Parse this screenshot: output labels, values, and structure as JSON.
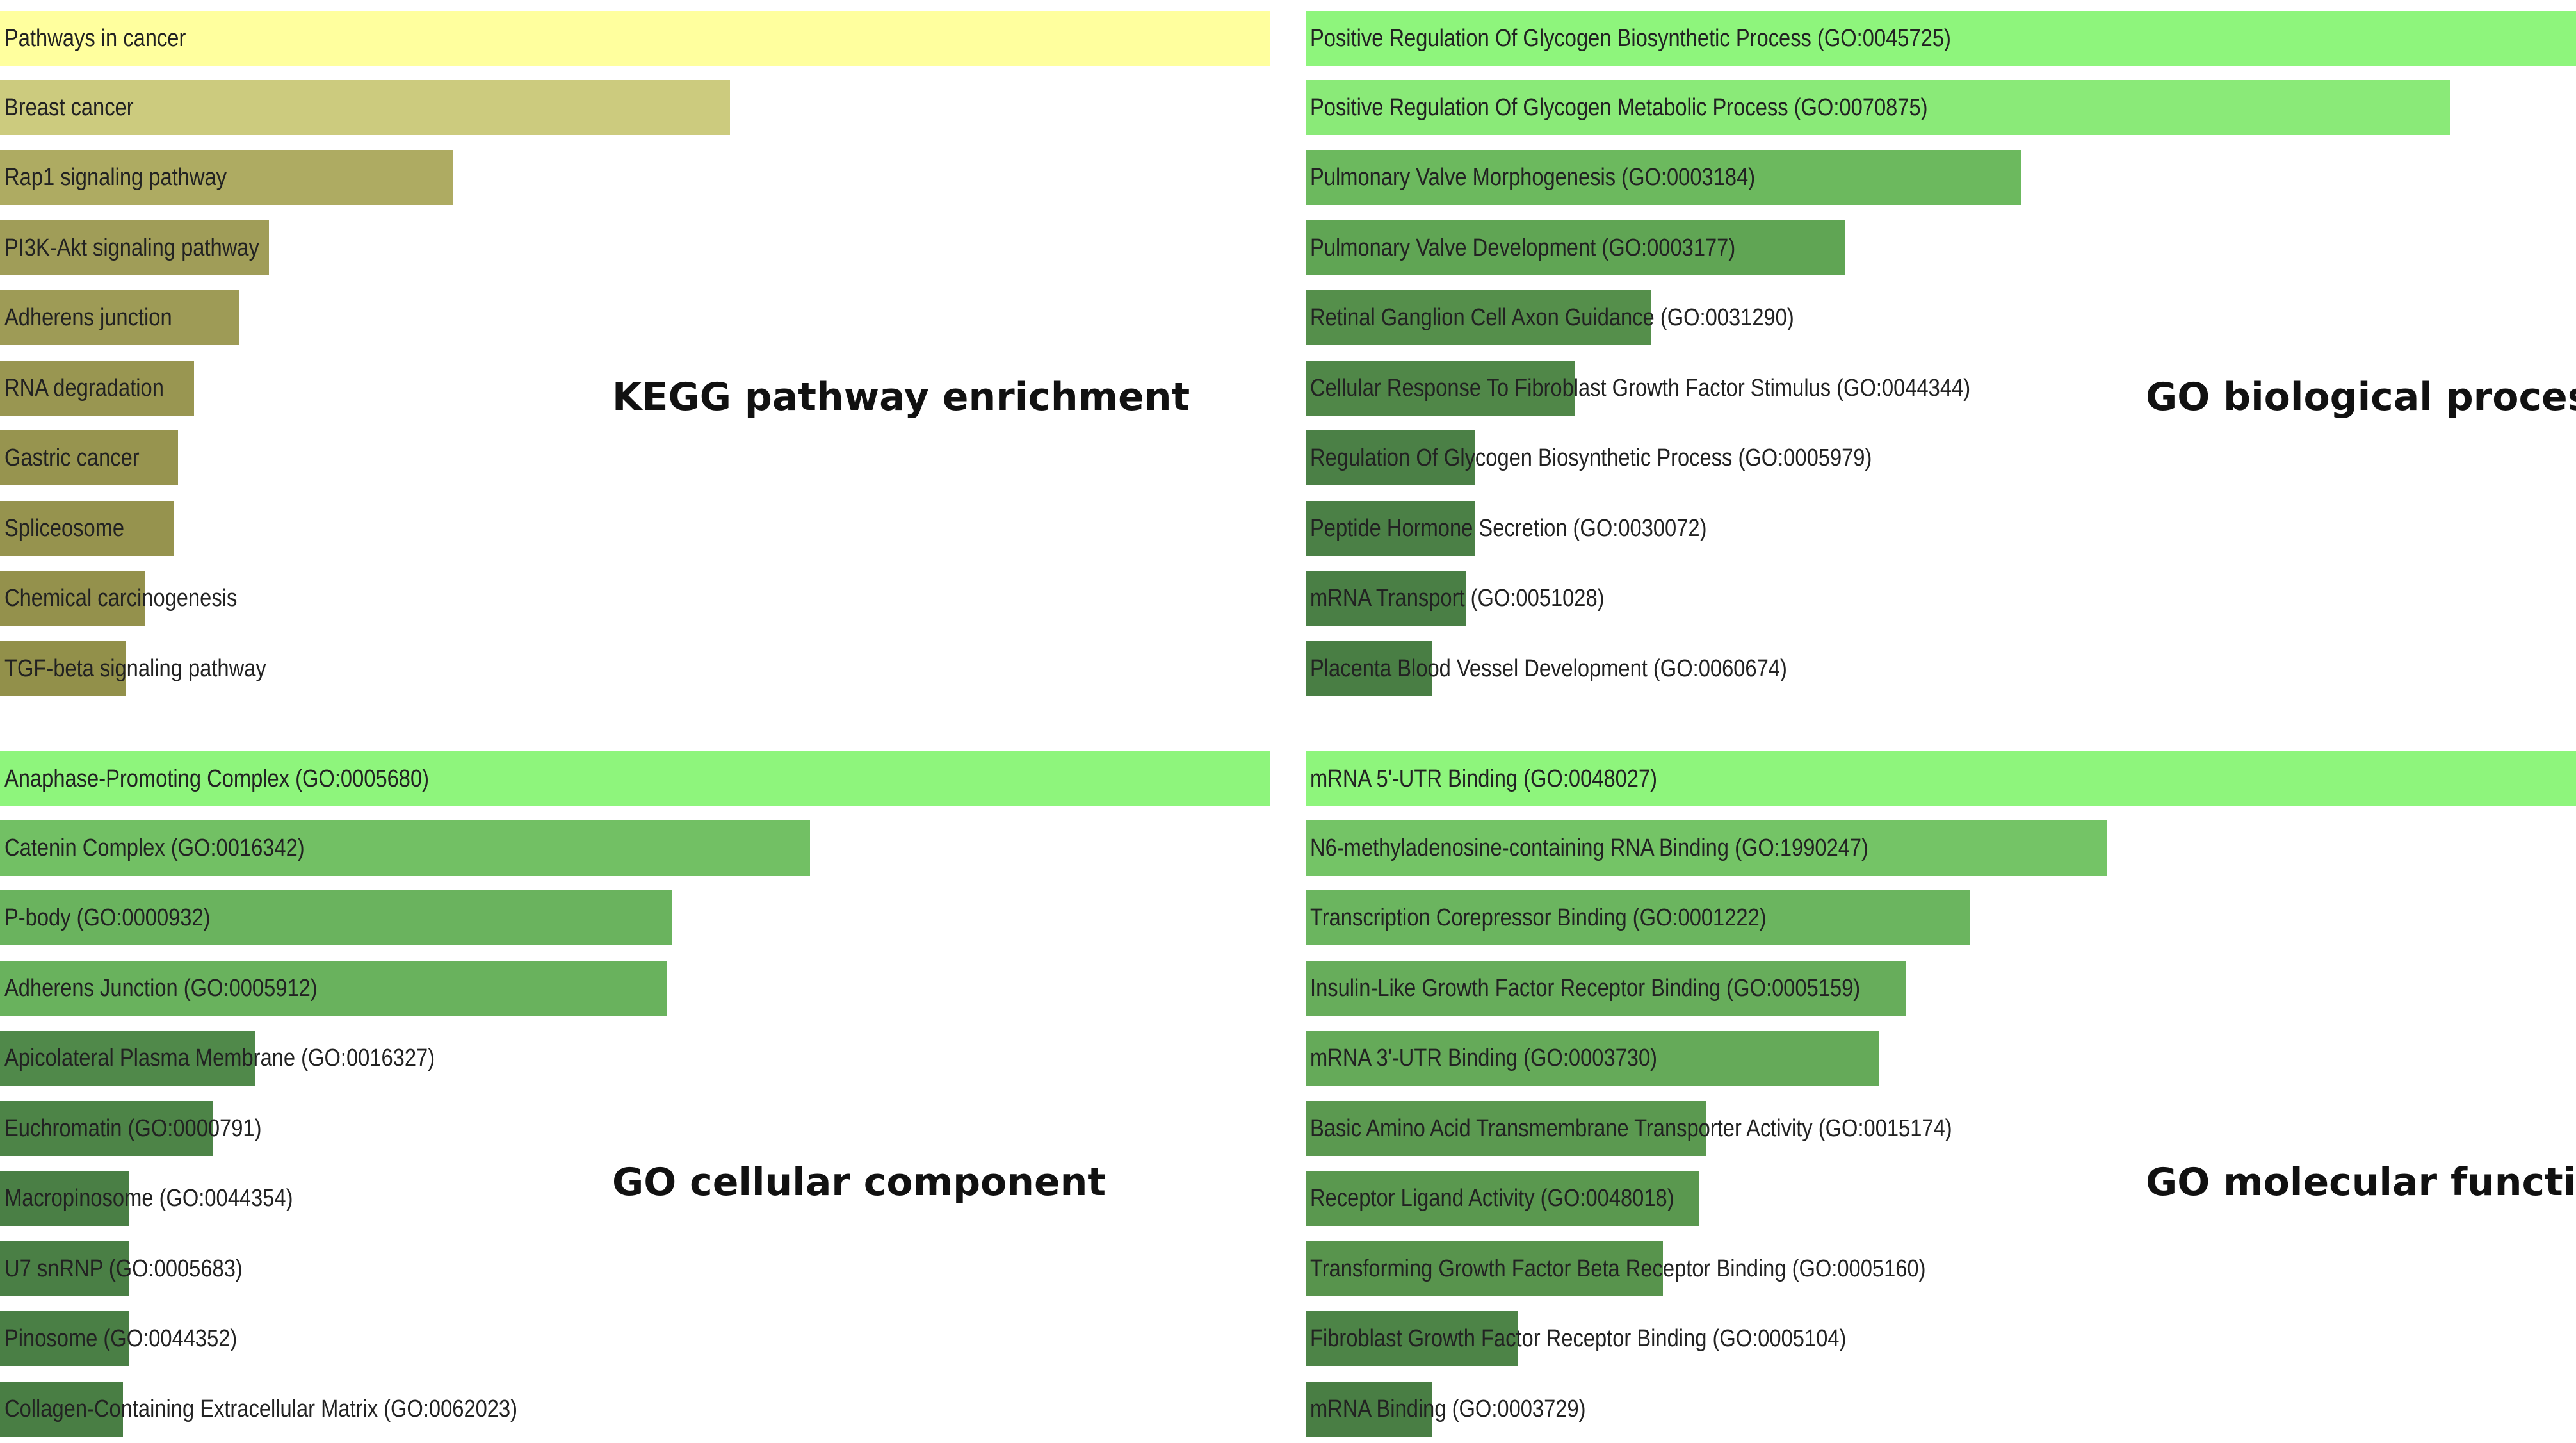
{
  "chart_data": [
    {
      "type": "bar",
      "orientation": "horizontal",
      "title": "KEGG pathway enrichment",
      "categories": [
        "Pathways in cancer",
        "Breast cancer",
        "Rap1 signaling pathway",
        "PI3K-Akt signaling pathway",
        "Adherens junction",
        "RNA degradation",
        "Gastric cancer",
        "Spliceosome",
        "Chemical carcinogenesis",
        "TGF-beta signaling pathway"
      ],
      "values": [
        1.0,
        0.575,
        0.357,
        0.212,
        0.188,
        0.153,
        0.14,
        0.137,
        0.114,
        0.099
      ],
      "colors": [
        "#ffff9e",
        "#cccb7e",
        "#aeab62",
        "#a09d58",
        "#9e9b56",
        "#999651",
        "#97944f",
        "#96934e",
        "#94914c",
        "#92904a"
      ],
      "xlabel": "",
      "ylabel": ""
    },
    {
      "type": "bar",
      "orientation": "horizontal",
      "title": "GO biological process",
      "categories": [
        "Positive Regulation Of Glycogen Biosynthetic Process (GO:0045725)",
        "Positive Regulation Of Glycogen Metabolic Process (GO:0070875)",
        "Pulmonary Valve Morphogenesis (GO:0003184)",
        "Pulmonary Valve Development (GO:0003177)",
        "Retinal Ganglion Cell Axon Guidance (GO:0031290)",
        "Cellular Response To Fibroblast Growth Factor Stimulus (GO:0044344)",
        "Regulation Of Glycogen Biosynthetic Process (GO:0005979)",
        "Peptide Hormone Secretion (GO:0030072)",
        "mRNA Transport (GO:0051028)",
        "Placenta Blood Vessel Development (GO:0060674)"
      ],
      "values": [
        1.0,
        0.901,
        0.563,
        0.425,
        0.272,
        0.212,
        0.133,
        0.133,
        0.126,
        0.1
      ],
      "colors": [
        "#8ef57c",
        "#8aea78",
        "#6cb95e",
        "#60a554",
        "#558f4b",
        "#508748",
        "#4b8046",
        "#4b8046",
        "#4a7f45",
        "#497e44"
      ],
      "xlabel": "",
      "ylabel": ""
    },
    {
      "type": "bar",
      "orientation": "horizontal",
      "title": "GO cellular component",
      "categories": [
        "Anaphase-Promoting Complex (GO:0005680)",
        "Catenin Complex (GO:0016342)",
        "P-body (GO:0000932)",
        "Adherens Junction (GO:0005912)",
        "Apicolateral Plasma Membrane (GO:0016327)",
        "Euchromatin (GO:0000791)",
        "Macropinosome (GO:0044354)",
        "U7 snRNP (GO:0005683)",
        "Pinosome (GO:0044352)",
        "Collagen-Containing Extracellular Matrix (GO:0062023)"
      ],
      "values": [
        1.0,
        0.638,
        0.529,
        0.525,
        0.201,
        0.168,
        0.102,
        0.102,
        0.102,
        0.097
      ],
      "colors": [
        "#8ef57c",
        "#72c064",
        "#6ab35e",
        "#69b25d",
        "#50894a",
        "#4d8447",
        "#4a7f45",
        "#4a7f45",
        "#4a7f45",
        "#497e44"
      ],
      "xlabel": "",
      "ylabel": ""
    },
    {
      "type": "bar",
      "orientation": "horizontal",
      "title": "GO molecular function",
      "categories": [
        "mRNA 5'-UTR Binding (GO:0048027)",
        "N6-methyladenosine-containing RNA Binding (GO:1990247)",
        "Transcription Corepressor Binding (GO:0001222)",
        "Insulin-Like Growth Factor Receptor Binding (GO:0005159)",
        "mRNA 3'-UTR Binding (GO:0003730)",
        "Basic Amino Acid Transmembrane Transporter Activity (GO:0015174)",
        "Receptor Ligand Activity (GO:0048018)",
        "Transforming Growth Factor Beta Receptor Binding (GO:0005160)",
        "Fibroblast Growth Factor Receptor Binding (GO:0005104)",
        "mRNA Binding (GO:0003729)"
      ],
      "values": [
        1.0,
        0.631,
        0.523,
        0.473,
        0.451,
        0.315,
        0.31,
        0.281,
        0.167,
        0.1
      ],
      "colors": [
        "#8ef57c",
        "#74c466",
        "#6bb55f",
        "#67ad5b",
        "#65aa59",
        "#5b9950",
        "#5a984f",
        "#58944d",
        "#4d8447",
        "#497e44"
      ],
      "xlabel": "",
      "ylabel": ""
    }
  ]
}
